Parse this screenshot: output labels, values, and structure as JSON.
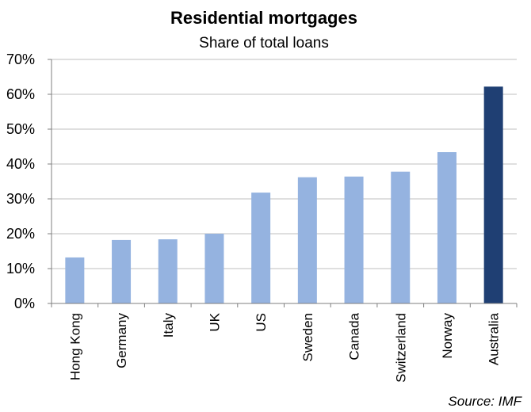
{
  "chart_data": {
    "type": "bar",
    "title": "Residential mortgages",
    "subtitle": "Share of total loans",
    "categories": [
      "Hong Kong",
      "Germany",
      "Italy",
      "UK",
      "US",
      "Sweden",
      "Canada",
      "Switzerland",
      "Norway",
      "Australia"
    ],
    "values": [
      13.2,
      18.2,
      18.4,
      20.0,
      31.8,
      36.2,
      36.4,
      37.8,
      43.4,
      62.2
    ],
    "y_ticks": [
      "0%",
      "10%",
      "20%",
      "30%",
      "40%",
      "50%",
      "60%",
      "70%"
    ],
    "ylim": [
      0,
      70
    ],
    "xlabel": "",
    "ylabel": "",
    "grid": true,
    "legend": "none",
    "source": "Source: IMF",
    "colors": {
      "bar": "#95b3e0",
      "highlight": "#1f3f73",
      "highlight_category": "Australia"
    }
  }
}
